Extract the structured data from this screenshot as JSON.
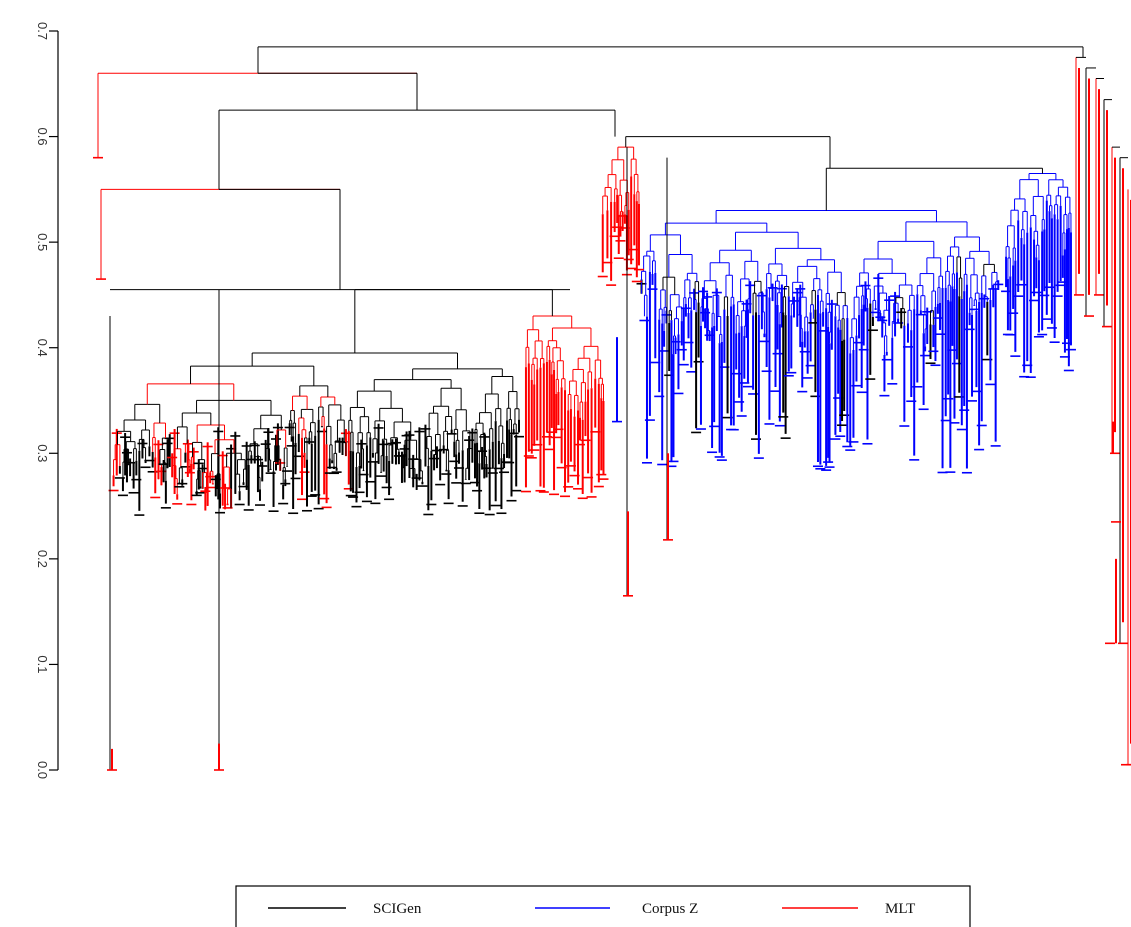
{
  "chart_data": {
    "type": "dendrogram",
    "title": "",
    "xlabel": "",
    "ylabel": "",
    "ylim": [
      0.0,
      0.7
    ],
    "y_ticks": [
      0.0,
      0.1,
      0.2,
      0.3,
      0.4,
      0.5,
      0.6,
      0.7
    ],
    "y_tick_labels": [
      "0.0",
      "0.1",
      "0.2",
      "0.3",
      "0.4",
      "0.5",
      "0.6",
      "0.7"
    ],
    "tick_label_rotation": "rotated 90 degrees clockwise",
    "grid": false,
    "legend_position": "bottom-center",
    "legend": [
      {
        "name": "SCIGen",
        "color": "#000000"
      },
      {
        "name": "Corpus Z",
        "color": "#0000ff"
      },
      {
        "name": "MLT",
        "color": "#ff0000"
      }
    ],
    "top_merges": [
      {
        "height": 0.685,
        "joins": "left block + right MLT block"
      },
      {
        "height": 0.66,
        "joins": "MLT leaf + main left block"
      },
      {
        "height": 0.625,
        "joins": "left SCIGen cluster + Corpus Z cluster"
      },
      {
        "height": 0.55,
        "joins": "MLT leaf + SCIGen cluster"
      },
      {
        "height": 0.455,
        "joins": "SCIGen cluster core"
      },
      {
        "height": 0.57,
        "joins": "Corpus Z cluster core"
      }
    ],
    "outlier_leaves": [
      {
        "group": "MLT",
        "height": 0.58
      },
      {
        "group": "MLT",
        "height": 0.465
      },
      {
        "group": "MLT",
        "height": 0.0
      },
      {
        "group": "MLT",
        "height": 0.0
      },
      {
        "group": "MLT",
        "height": 0.165
      },
      {
        "group": "MLT",
        "height": 0.218
      },
      {
        "group": "MLT",
        "height": 0.005
      }
    ],
    "leaf_height_ranges": [
      {
        "group": "SCIGen",
        "min": 0.245,
        "max": 0.33
      },
      {
        "group": "Corpus Z",
        "min": 0.285,
        "max": 0.47
      },
      {
        "group": "MLT",
        "min": 0.0,
        "max": 0.58
      }
    ]
  }
}
